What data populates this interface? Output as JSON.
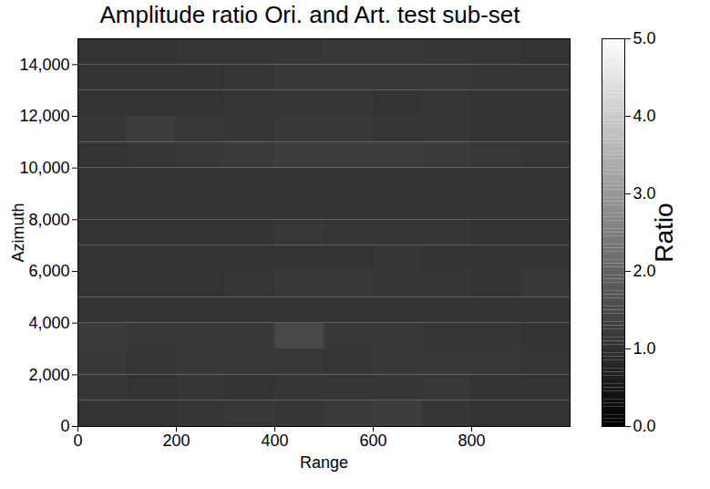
{
  "chart_data": {
    "type": "heatmap",
    "title": "Amplitude ratio Ori. and Art. test sub-set",
    "x_label": "Range",
    "y_label": "Azimuth",
    "xlim": [
      0,
      1000
    ],
    "ylim": [
      0,
      15000
    ],
    "xticks": [
      0,
      200,
      400,
      600,
      800
    ],
    "yticks": [
      0,
      2000,
      4000,
      6000,
      8000,
      10000,
      12000,
      14000
    ],
    "x_edges": [
      0,
      100,
      200,
      300,
      400,
      500,
      600,
      700,
      800,
      900,
      1000
    ],
    "y_edges": [
      0,
      1000,
      2000,
      3000,
      4000,
      5000,
      6000,
      7000,
      8000,
      9000,
      10000,
      11000,
      12000,
      13000,
      14000,
      15000
    ],
    "cells": [
      [
        1.0,
        1.0,
        1.05,
        1.1,
        1.05,
        1.15,
        1.2,
        1.05,
        1.0,
        1.0
      ],
      [
        1.05,
        1.0,
        1.05,
        1.0,
        1.05,
        1.05,
        1.05,
        1.1,
        1.0,
        1.0
      ],
      [
        1.1,
        1.05,
        1.1,
        1.1,
        1.1,
        1.05,
        1.1,
        1.1,
        1.1,
        1.05
      ],
      [
        1.15,
        1.1,
        1.1,
        1.1,
        1.4,
        1.1,
        1.1,
        1.05,
        1.05,
        1.0
      ],
      [
        1.0,
        1.0,
        1.0,
        1.0,
        1.0,
        1.0,
        1.0,
        1.0,
        1.0,
        1.0
      ],
      [
        1.0,
        1.0,
        1.0,
        1.05,
        1.1,
        1.1,
        1.05,
        1.05,
        1.0,
        1.1
      ],
      [
        1.0,
        1.0,
        1.0,
        1.0,
        1.0,
        1.0,
        1.05,
        1.0,
        1.0,
        1.0
      ],
      [
        1.0,
        1.0,
        1.0,
        1.0,
        1.1,
        1.05,
        1.05,
        1.05,
        1.0,
        1.0
      ],
      [
        1.0,
        1.0,
        1.0,
        1.0,
        1.0,
        1.0,
        1.0,
        1.0,
        1.0,
        1.0
      ],
      [
        1.0,
        1.0,
        1.0,
        1.0,
        1.0,
        1.0,
        1.0,
        1.0,
        1.0,
        1.0
      ],
      [
        1.0,
        1.05,
        1.1,
        1.15,
        1.2,
        1.2,
        1.2,
        1.15,
        1.1,
        1.05
      ],
      [
        1.05,
        1.2,
        1.1,
        1.05,
        1.1,
        1.1,
        1.05,
        1.05,
        1.0,
        1.0
      ],
      [
        1.0,
        1.0,
        1.0,
        1.05,
        1.05,
        1.05,
        1.0,
        1.05,
        1.0,
        1.0
      ],
      [
        1.0,
        1.0,
        1.0,
        1.05,
        1.1,
        1.1,
        1.1,
        1.1,
        1.05,
        1.05
      ],
      [
        1.0,
        1.0,
        1.05,
        1.05,
        1.05,
        1.1,
        1.1,
        1.05,
        1.05,
        1.0
      ]
    ],
    "colorbar": {
      "label": "Ratio",
      "range": [
        0,
        5
      ],
      "ticks": [
        0,
        1,
        2,
        3,
        4,
        5
      ]
    }
  }
}
